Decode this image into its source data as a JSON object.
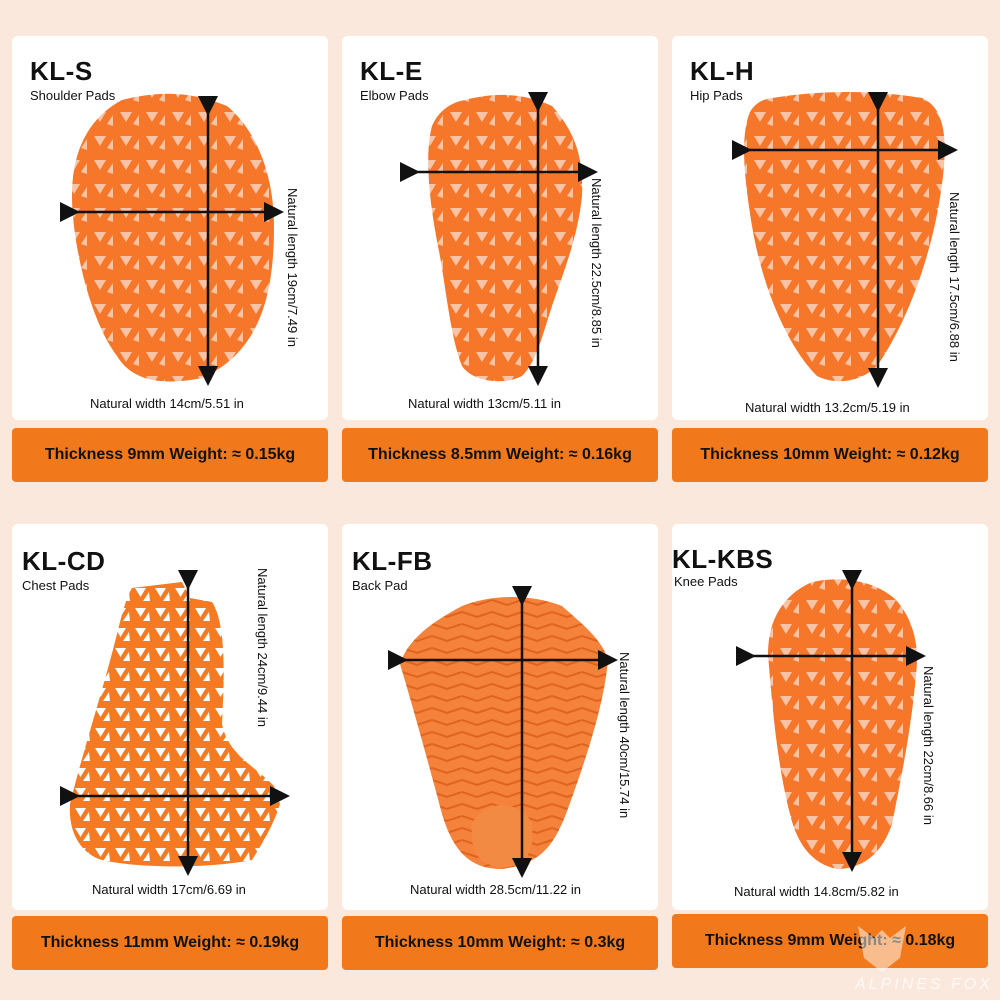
{
  "colors": {
    "accent": "#f2791b",
    "pad_orange": "#f6762a",
    "background": "#fbe8dc"
  },
  "products": [
    {
      "code": "KL-S",
      "name": "Shoulder Pads",
      "length_label": "Natural length 19cm/7.49 in",
      "width_label": "Natural width 14cm/5.51 in",
      "specs": "Thickness 9mm Weight: ≈ 0.15kg"
    },
    {
      "code": "KL-E",
      "name": "Elbow Pads",
      "length_label": "Natural length 22.5cm/8.85 in",
      "width_label": "Natural width 13cm/5.11 in",
      "specs": "Thickness 8.5mm Weight: ≈ 0.16kg"
    },
    {
      "code": "KL-H",
      "name": "Hip Pads",
      "length_label": "Natural length 17.5cm/6.88 in",
      "width_label": "Natural width 13.2cm/5.19 in",
      "specs": "Thickness 10mm Weight: ≈ 0.12kg"
    },
    {
      "code": "KL-CD",
      "name": "Chest Pads",
      "length_label": "Natural length 24cm/9.44 in",
      "width_label": "Natural width 17cm/6.69 in",
      "specs": "Thickness 11mm Weight: ≈ 0.19kg"
    },
    {
      "code": "KL-FB",
      "name": "Back Pad",
      "length_label": "Natural length 40cm/15.74 in",
      "width_label": "Natural width 28.5cm/11.22 in",
      "specs": "Thickness 10mm Weight: ≈ 0.3kg"
    },
    {
      "code": "KL-KBS",
      "name": "Knee Pads",
      "length_label": "Natural length 22cm/8.66 in",
      "width_label": "Natural width 14.8cm/5.82 in",
      "specs": "Thickness 9mm Weight: ≈ 0.18kg"
    }
  ],
  "brand": {
    "name": "ALPINES FOX",
    "logo_icon": "fox-logo-icon"
  }
}
